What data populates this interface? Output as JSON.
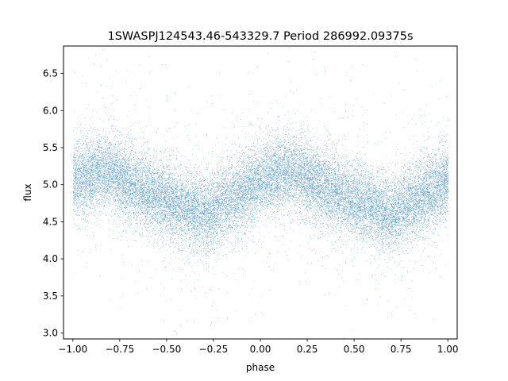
{
  "chart_data": {
    "type": "scatter",
    "title": "1SWASPJ124543.46-543329.7 Period 286992.09375s",
    "xlabel": "phase",
    "ylabel": "flux",
    "xlim": [
      -1.05,
      1.05
    ],
    "ylim": [
      2.92,
      6.87
    ],
    "xticks": [
      -1.0,
      -0.75,
      -0.5,
      -0.25,
      0.0,
      0.25,
      0.5,
      0.75,
      1.0
    ],
    "xtick_labels": [
      "−1.00",
      "−0.75",
      "−0.50",
      "−0.25",
      "0.00",
      "0.25",
      "0.50",
      "0.75",
      "1.00"
    ],
    "yticks": [
      3.0,
      3.5,
      4.0,
      4.5,
      5.0,
      5.5,
      6.0,
      6.5
    ],
    "ytick_labels": [
      "3.0",
      "3.5",
      "4.0",
      "4.5",
      "5.0",
      "5.5",
      "6.0",
      "6.5"
    ],
    "grid": false,
    "marker_color": "#1f77b4",
    "series": [
      {
        "phase_range": [
          -1.0,
          1.0
        ],
        "mean_flux_profile": {
          "phase": [
            -1.0,
            -0.9,
            -0.85,
            -0.8,
            -0.7,
            -0.6,
            -0.5,
            -0.4,
            -0.3,
            -0.2,
            -0.1,
            0.0,
            0.1,
            0.15,
            0.2,
            0.3,
            0.4,
            0.5,
            0.6,
            0.7,
            0.8,
            0.9,
            1.0
          ],
          "flux": [
            5.05,
            5.15,
            5.2,
            5.15,
            5.0,
            4.9,
            4.78,
            4.7,
            4.6,
            4.75,
            4.9,
            5.05,
            5.15,
            5.2,
            5.15,
            5.0,
            4.9,
            4.78,
            4.7,
            4.6,
            4.75,
            4.9,
            5.05
          ]
        },
        "typical_spread": 0.25,
        "point_count": 26000
      }
    ]
  }
}
